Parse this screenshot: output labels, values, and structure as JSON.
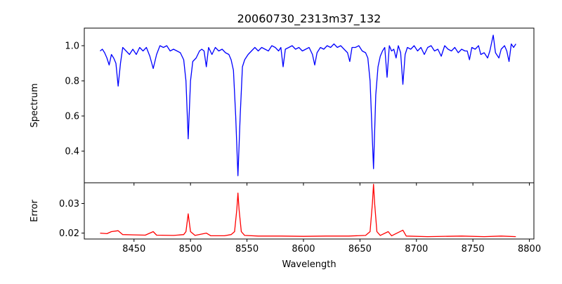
{
  "chart_data": [
    {
      "type": "line",
      "title": "20060730_2313m37_132",
      "xlabel": "",
      "ylabel": "Spectrum",
      "xlim": [
        8406,
        8804
      ],
      "ylim": [
        0.22,
        1.1
      ],
      "xticks": [
        8450,
        8500,
        8550,
        8600,
        8650,
        8700,
        8750,
        8800
      ],
      "yticks": [
        0.4,
        0.6,
        0.8,
        1.0
      ],
      "ytick_labels": [
        "0.4",
        "0.6",
        "0.8",
        "1.0"
      ],
      "color": "#0000ff",
      "points": [
        [
          8420,
          0.97
        ],
        [
          8422,
          0.98
        ],
        [
          8424,
          0.96
        ],
        [
          8426,
          0.93
        ],
        [
          8428,
          0.89
        ],
        [
          8430,
          0.95
        ],
        [
          8432,
          0.93
        ],
        [
          8434,
          0.9
        ],
        [
          8436,
          0.77
        ],
        [
          8438,
          0.9
        ],
        [
          8440,
          0.99
        ],
        [
          8443,
          0.97
        ],
        [
          8446,
          0.95
        ],
        [
          8449,
          0.98
        ],
        [
          8452,
          0.95
        ],
        [
          8455,
          0.99
        ],
        [
          8458,
          0.97
        ],
        [
          8461,
          0.99
        ],
        [
          8464,
          0.94
        ],
        [
          8467,
          0.87
        ],
        [
          8470,
          0.95
        ],
        [
          8473,
          1.0
        ],
        [
          8476,
          0.99
        ],
        [
          8479,
          1.0
        ],
        [
          8482,
          0.97
        ],
        [
          8485,
          0.98
        ],
        [
          8488,
          0.97
        ],
        [
          8491,
          0.96
        ],
        [
          8494,
          0.92
        ],
        [
          8496,
          0.8
        ],
        [
          8498,
          0.47
        ],
        [
          8500,
          0.8
        ],
        [
          8502,
          0.91
        ],
        [
          8505,
          0.93
        ],
        [
          8508,
          0.97
        ],
        [
          8510,
          0.98
        ],
        [
          8512,
          0.97
        ],
        [
          8514,
          0.88
        ],
        [
          8516,
          0.99
        ],
        [
          8519,
          0.95
        ],
        [
          8522,
          0.99
        ],
        [
          8525,
          0.97
        ],
        [
          8528,
          0.98
        ],
        [
          8531,
          0.96
        ],
        [
          8534,
          0.95
        ],
        [
          8536,
          0.92
        ],
        [
          8538,
          0.86
        ],
        [
          8540,
          0.6
        ],
        [
          8542,
          0.26
        ],
        [
          8544,
          0.6
        ],
        [
          8546,
          0.88
        ],
        [
          8548,
          0.92
        ],
        [
          8551,
          0.95
        ],
        [
          8554,
          0.97
        ],
        [
          8557,
          0.99
        ],
        [
          8560,
          0.97
        ],
        [
          8563,
          0.99
        ],
        [
          8566,
          0.98
        ],
        [
          8569,
          0.97
        ],
        [
          8572,
          1.0
        ],
        [
          8575,
          0.99
        ],
        [
          8578,
          0.97
        ],
        [
          8580,
          0.99
        ],
        [
          8582,
          0.88
        ],
        [
          8584,
          0.98
        ],
        [
          8587,
          0.99
        ],
        [
          8590,
          1.0
        ],
        [
          8593,
          0.98
        ],
        [
          8596,
          0.99
        ],
        [
          8599,
          0.97
        ],
        [
          8602,
          0.98
        ],
        [
          8605,
          0.99
        ],
        [
          8608,
          0.95
        ],
        [
          8610,
          0.89
        ],
        [
          8612,
          0.96
        ],
        [
          8615,
          0.99
        ],
        [
          8618,
          0.98
        ],
        [
          8621,
          1.0
        ],
        [
          8624,
          0.99
        ],
        [
          8627,
          1.01
        ],
        [
          8630,
          0.99
        ],
        [
          8633,
          1.0
        ],
        [
          8636,
          0.98
        ],
        [
          8639,
          0.96
        ],
        [
          8641,
          0.91
        ],
        [
          8643,
          0.99
        ],
        [
          8646,
          0.99
        ],
        [
          8649,
          1.0
        ],
        [
          8652,
          0.97
        ],
        [
          8655,
          0.96
        ],
        [
          8657,
          0.93
        ],
        [
          8659,
          0.8
        ],
        [
          8662,
          0.3
        ],
        [
          8664,
          0.72
        ],
        [
          8666,
          0.88
        ],
        [
          8668,
          0.94
        ],
        [
          8670,
          0.97
        ],
        [
          8672,
          0.99
        ],
        [
          8674,
          0.82
        ],
        [
          8676,
          1.0
        ],
        [
          8678,
          0.97
        ],
        [
          8680,
          0.98
        ],
        [
          8682,
          0.93
        ],
        [
          8684,
          1.0
        ],
        [
          8686,
          0.96
        ],
        [
          8688,
          0.78
        ],
        [
          8690,
          0.95
        ],
        [
          8692,
          0.99
        ],
        [
          8695,
          0.98
        ],
        [
          8698,
          1.0
        ],
        [
          8701,
          0.97
        ],
        [
          8704,
          0.99
        ],
        [
          8707,
          0.95
        ],
        [
          8710,
          0.99
        ],
        [
          8713,
          1.0
        ],
        [
          8716,
          0.97
        ],
        [
          8719,
          0.98
        ],
        [
          8722,
          0.94
        ],
        [
          8725,
          1.0
        ],
        [
          8728,
          0.98
        ],
        [
          8731,
          0.97
        ],
        [
          8734,
          0.99
        ],
        [
          8737,
          0.96
        ],
        [
          8740,
          0.98
        ],
        [
          8743,
          0.97
        ],
        [
          8745,
          0.97
        ],
        [
          8747,
          0.92
        ],
        [
          8749,
          0.99
        ],
        [
          8752,
          0.98
        ],
        [
          8755,
          1.0
        ],
        [
          8757,
          0.95
        ],
        [
          8760,
          0.96
        ],
        [
          8763,
          0.93
        ],
        [
          8765,
          0.97
        ],
        [
          8768,
          1.06
        ],
        [
          8770,
          0.96
        ],
        [
          8773,
          0.93
        ],
        [
          8775,
          0.98
        ],
        [
          8778,
          1.0
        ],
        [
          8780,
          0.97
        ],
        [
          8782,
          0.91
        ],
        [
          8784,
          1.01
        ],
        [
          8786,
          0.99
        ],
        [
          8788,
          1.01
        ]
      ]
    },
    {
      "type": "line",
      "title": "",
      "xlabel": "Wavelength",
      "ylabel": "Error",
      "xlim": [
        8406,
        8804
      ],
      "ylim": [
        0.018,
        0.037
      ],
      "xticks": [
        8450,
        8500,
        8550,
        8600,
        8650,
        8700,
        8750,
        8800
      ],
      "xtick_labels": [
        "8450",
        "8500",
        "8550",
        "8600",
        "8650",
        "8700",
        "8750",
        "8800"
      ],
      "yticks": [
        0.02,
        0.03
      ],
      "ytick_labels": [
        "0.02",
        "0.03"
      ],
      "color": "#ff0000",
      "points": [
        [
          8420,
          0.02
        ],
        [
          8426,
          0.0198
        ],
        [
          8430,
          0.0205
        ],
        [
          8436,
          0.0208
        ],
        [
          8440,
          0.0195
        ],
        [
          8450,
          0.0194
        ],
        [
          8460,
          0.0193
        ],
        [
          8467,
          0.0205
        ],
        [
          8470,
          0.0193
        ],
        [
          8485,
          0.0192
        ],
        [
          8494,
          0.0195
        ],
        [
          8496,
          0.0205
        ],
        [
          8498,
          0.0265
        ],
        [
          8500,
          0.0205
        ],
        [
          8504,
          0.0192
        ],
        [
          8514,
          0.02
        ],
        [
          8518,
          0.0191
        ],
        [
          8530,
          0.0191
        ],
        [
          8536,
          0.0195
        ],
        [
          8539,
          0.0205
        ],
        [
          8541,
          0.028
        ],
        [
          8542,
          0.0335
        ],
        [
          8543,
          0.028
        ],
        [
          8545,
          0.0205
        ],
        [
          8548,
          0.0192
        ],
        [
          8560,
          0.019
        ],
        [
          8580,
          0.019
        ],
        [
          8600,
          0.0189
        ],
        [
          8620,
          0.019
        ],
        [
          8640,
          0.019
        ],
        [
          8655,
          0.0192
        ],
        [
          8659,
          0.0205
        ],
        [
          8661,
          0.03
        ],
        [
          8662,
          0.0365
        ],
        [
          8663,
          0.03
        ],
        [
          8665,
          0.0205
        ],
        [
          8668,
          0.0192
        ],
        [
          8675,
          0.0205
        ],
        [
          8678,
          0.0191
        ],
        [
          8688,
          0.021
        ],
        [
          8691,
          0.019
        ],
        [
          8710,
          0.0188
        ],
        [
          8740,
          0.019
        ],
        [
          8760,
          0.0188
        ],
        [
          8775,
          0.019
        ],
        [
          8788,
          0.0188
        ]
      ]
    }
  ]
}
